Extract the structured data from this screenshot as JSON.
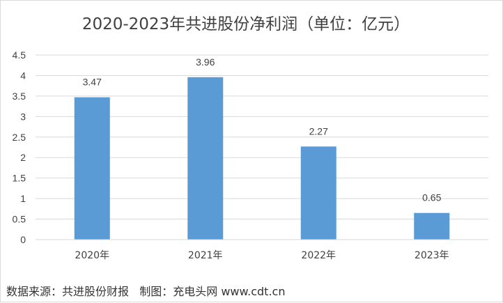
{
  "chart_data": {
    "type": "bar",
    "title": "2020-2023年共进股份净利润（单位：亿元）",
    "categories": [
      "2020年",
      "2021年",
      "2022年",
      "2023年"
    ],
    "values": [
      3.47,
      3.96,
      2.27,
      0.65
    ],
    "data_labels": [
      "3.47",
      "3.96",
      "2.27",
      "0.65"
    ],
    "y_ticks": [
      "0",
      "0.5",
      "1",
      "1.5",
      "2",
      "2.5",
      "3",
      "3.5",
      "4",
      "4.5"
    ],
    "ylim": [
      0,
      4.5
    ],
    "bar_color": "#5b9bd5",
    "grid": true,
    "legend": "none"
  },
  "source_note": "数据来源：共进股份财报   制图：充电头网 www.cdt.cn"
}
